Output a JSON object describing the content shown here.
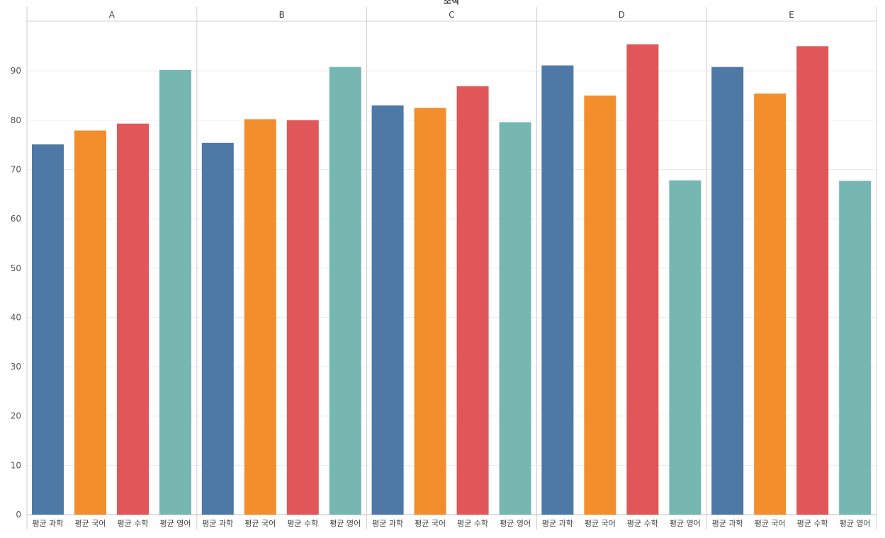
{
  "chart_data": {
    "type": "bar",
    "title": "조직",
    "facet_label": "조직",
    "facets": [
      "A",
      "B",
      "C",
      "D",
      "E"
    ],
    "categories": [
      "평균 과학",
      "평균 국어",
      "평균 수학",
      "평균 영어"
    ],
    "series_colors": [
      "#4e79a7",
      "#f28e2b",
      "#e15759",
      "#76b7b2"
    ],
    "values": [
      [
        75.1,
        77.9,
        79.3,
        90.2
      ],
      [
        75.4,
        80.2,
        80.0,
        90.8
      ],
      [
        83.0,
        82.5,
        86.9,
        79.6
      ],
      [
        91.1,
        85.0,
        95.4,
        67.8
      ],
      [
        90.8,
        85.4,
        95.0,
        67.7
      ]
    ],
    "y_ticks": [
      0,
      10,
      20,
      30,
      40,
      50,
      60,
      70,
      80,
      90
    ],
    "ylim": [
      0,
      100
    ],
    "xlabel": "",
    "ylabel": "",
    "grid": true
  }
}
